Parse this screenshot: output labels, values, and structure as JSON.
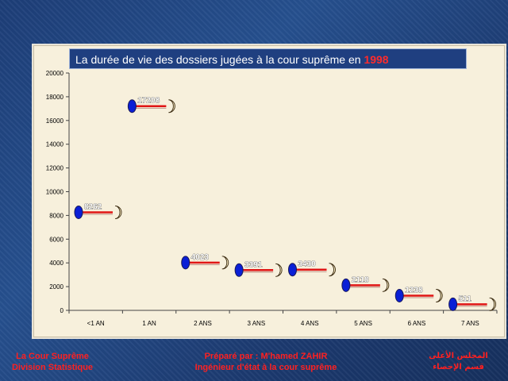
{
  "chart_data": {
    "type": "line",
    "title_main": "La durée de vie des dossiers jugées à la cour suprême en",
    "title_year": "1998",
    "categories": [
      "<1 AN",
      "1 AN",
      "2 ANS",
      "3 ANS",
      "4 ANS",
      "5 ANS",
      "6 ANS",
      "7 ANS"
    ],
    "values": [
      8262,
      17208,
      4023,
      3391,
      3430,
      2118,
      1238,
      511
    ],
    "data_labels": [
      "8262",
      "17208",
      "4023",
      "3391",
      "3430",
      "2118",
      "1238",
      "511"
    ],
    "yticks": [
      "0",
      "2000",
      "4000",
      "6000",
      "8000",
      "10000",
      "12000",
      "14000",
      "16000",
      "18000",
      "20000"
    ],
    "ylim": [
      0,
      20000
    ],
    "grid": false,
    "colors": {
      "marker": "#0a1fd6",
      "line": "#e01515",
      "moon": "#f6e9bf"
    }
  },
  "footer": {
    "left_line1": "La Cour Suprême",
    "left_line2": "Division Statistique",
    "center_line1": "Préparé par : M'hamed ZAHIR",
    "center_line2": "Ingénieur d'état à la cour suprême",
    "right_line1": "المجلس الأعلى",
    "right_line2": "قسم الإحصاء"
  }
}
